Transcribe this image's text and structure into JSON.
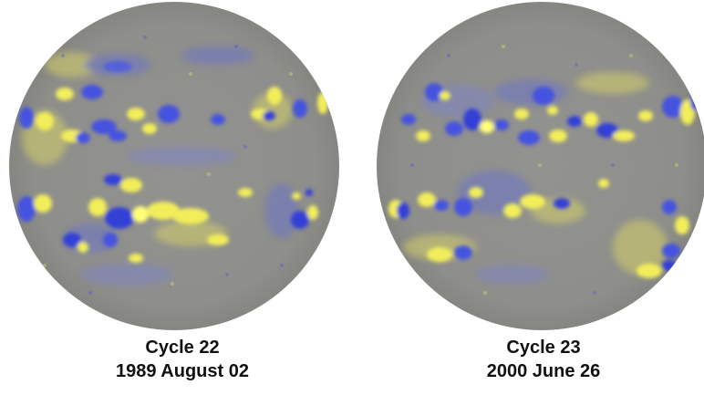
{
  "panels": [
    {
      "cycle_label": "Cycle 22",
      "date_label": "1989 August 02",
      "image_name": "solar-magnetogram-1989-disk"
    },
    {
      "cycle_label": "Cycle 23",
      "date_label": "2000 June 26",
      "image_name": "solar-magnetogram-2000-disk"
    }
  ],
  "colors": {
    "background_disk": "#8f8f8c",
    "positive_polarity": "#f2ee5a",
    "negative_polarity": "#4552e0",
    "text": "#111111"
  }
}
